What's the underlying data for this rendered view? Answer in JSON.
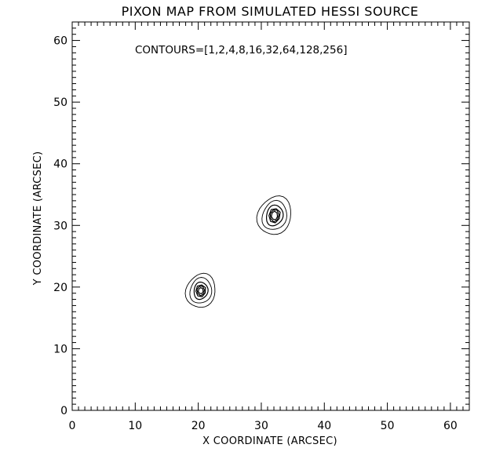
{
  "chart_data": {
    "type": "contour",
    "title": "PIXON MAP FROM SIMULATED HESSI SOURCE",
    "xlabel": "X COORDINATE (ARCSEC)",
    "ylabel": "Y COORDINATE (ARCSEC)",
    "xlim": [
      0,
      63
    ],
    "ylim": [
      0,
      63
    ],
    "xticks": [
      0,
      10,
      20,
      30,
      40,
      50,
      60
    ],
    "yticks": [
      0,
      10,
      20,
      30,
      40,
      50,
      60
    ],
    "minor_step": 1,
    "grid": false,
    "annotation": "CONTOURS=[1,2,4,8,16,32,64,128,256]",
    "contour_levels": [
      1,
      2,
      4,
      8,
      16,
      32,
      64,
      128,
      256
    ],
    "sources": [
      {
        "center": [
          32.1,
          31.6
        ],
        "contours": [
          {
            "semi_axes": [
              2.6,
              3.2
            ],
            "angle": 25
          },
          {
            "semi_axes": [
              1.9,
              2.4
            ],
            "angle": 20
          },
          {
            "semi_axes": [
              1.3,
              1.7
            ],
            "angle": 15
          },
          {
            "semi_axes": [
              0.9,
              1.2
            ],
            "angle": 10
          },
          {
            "semi_axes": [
              0.7,
              1.0
            ],
            "angle": 5
          },
          {
            "semi_axes": [
              0.5,
              0.7
            ],
            "angle": 0
          }
        ]
      },
      {
        "center": [
          20.4,
          19.4
        ],
        "contours": [
          {
            "semi_axes": [
              2.3,
              2.8
            ],
            "angle": 20
          },
          {
            "semi_axes": [
              1.7,
              2.1
            ],
            "angle": 15
          },
          {
            "semi_axes": [
              1.1,
              1.4
            ],
            "angle": 10
          },
          {
            "semi_axes": [
              0.8,
              1.0
            ],
            "angle": 5
          },
          {
            "semi_axes": [
              0.6,
              0.8
            ],
            "angle": 0
          },
          {
            "semi_axes": [
              0.4,
              0.5
            ],
            "angle": 0
          }
        ]
      }
    ]
  }
}
